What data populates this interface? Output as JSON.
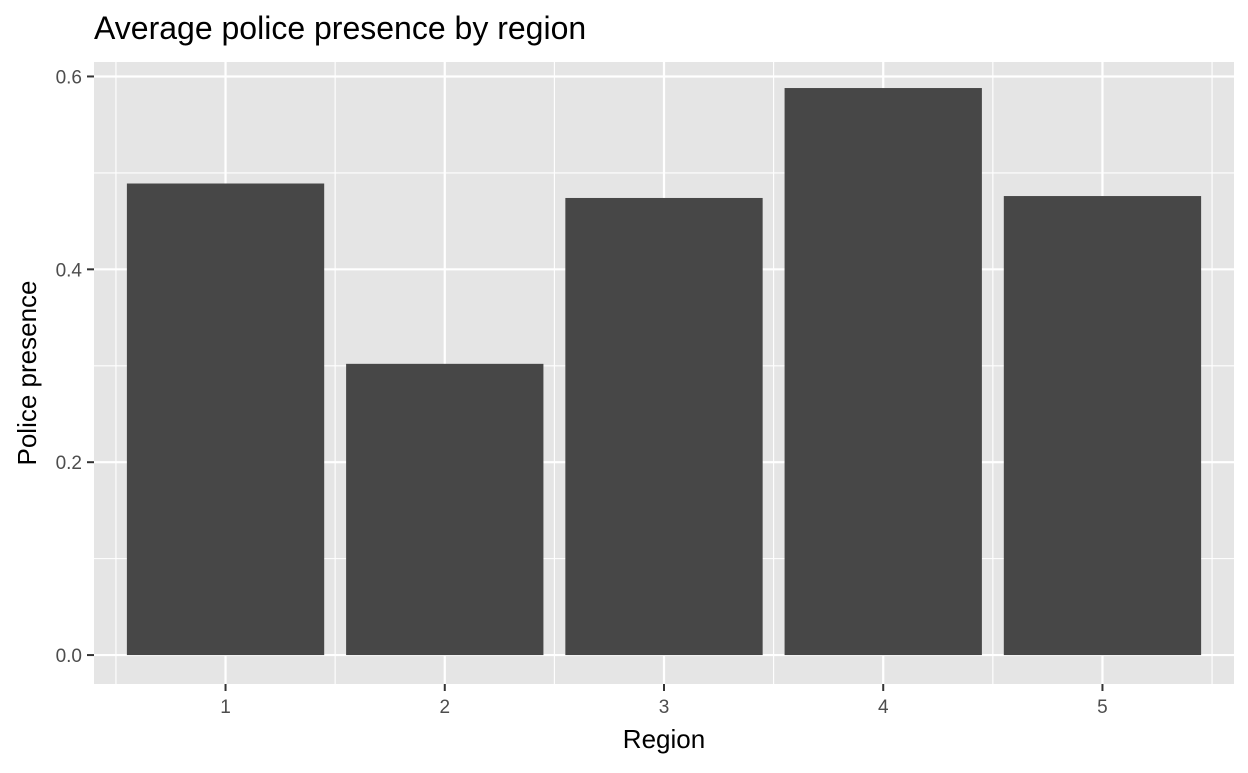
{
  "chart_data": {
    "type": "bar",
    "title": "Average police presence by region",
    "xlabel": "Region",
    "ylabel": "Police presence",
    "categories": [
      "1",
      "2",
      "3",
      "4",
      "5"
    ],
    "values": [
      0.489,
      0.302,
      0.474,
      0.588,
      0.476
    ],
    "ylim": [
      -0.03,
      0.615
    ],
    "yticks": [
      0.0,
      0.2,
      0.4,
      0.6
    ],
    "ytick_labels": [
      "0.0",
      "0.2",
      "0.4",
      "0.6"
    ],
    "grid": true,
    "legend": "none",
    "colors": {
      "panel_background": "#e5e5e5",
      "grid": "#ffffff",
      "bar_fill": "#474747",
      "tick_text": "#4d4d4d",
      "axis_tick": "#333333",
      "text": "#000000"
    }
  }
}
